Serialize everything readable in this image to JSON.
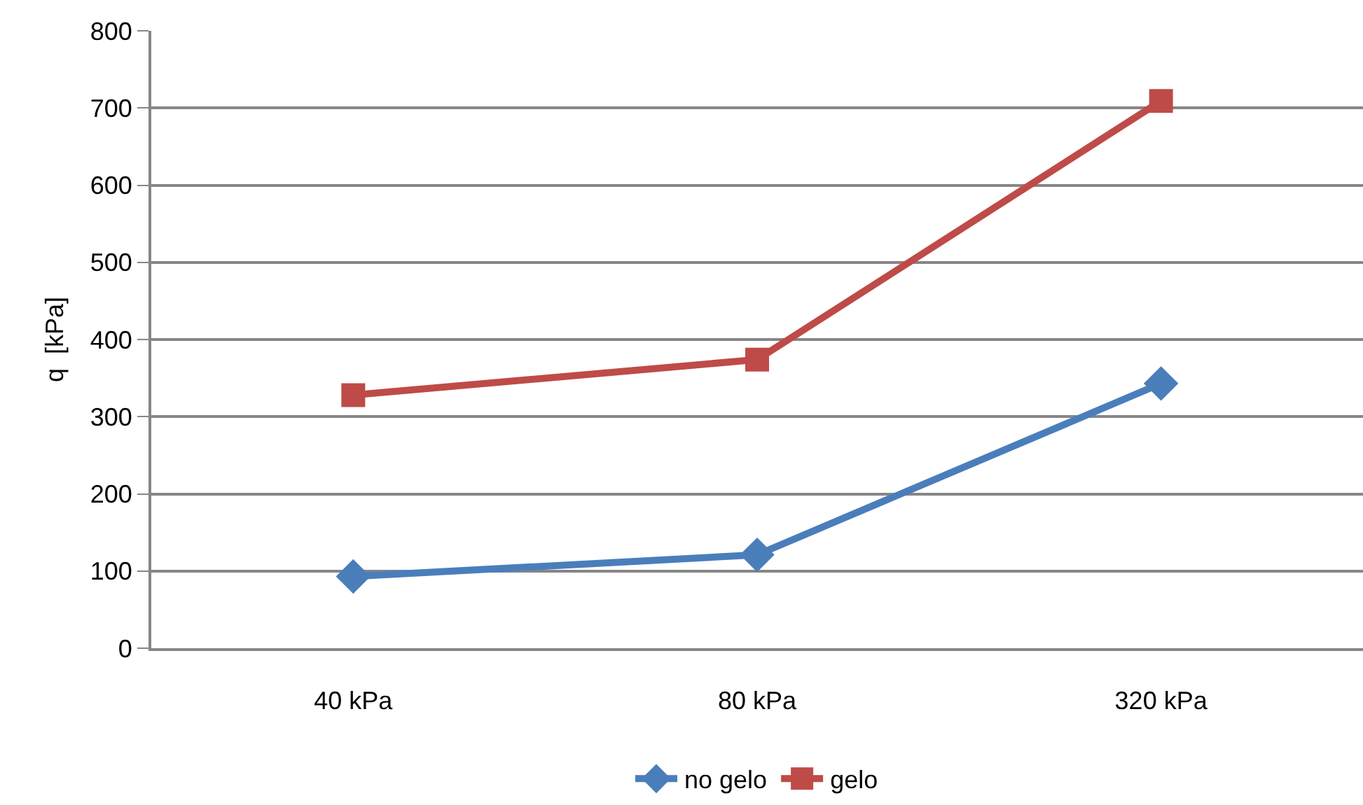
{
  "chart_data": {
    "type": "line",
    "ylabel": "q  [kPa]",
    "categories": [
      "40 kPa",
      "80 kPa",
      "320 kPa"
    ],
    "series": [
      {
        "name": "no gelo",
        "color": "#4a7ebb",
        "marker": "diamond",
        "values": [
          93,
          121,
          343
        ]
      },
      {
        "name": "gelo",
        "color": "#be4b48",
        "marker": "square",
        "values": [
          328,
          374,
          709
        ]
      }
    ],
    "ylim": [
      0,
      800
    ],
    "yticks": [
      0,
      100,
      200,
      300,
      400,
      500,
      600,
      700,
      800
    ],
    "grid": "y",
    "legend": "bottom",
    "line_style": "solid"
  }
}
